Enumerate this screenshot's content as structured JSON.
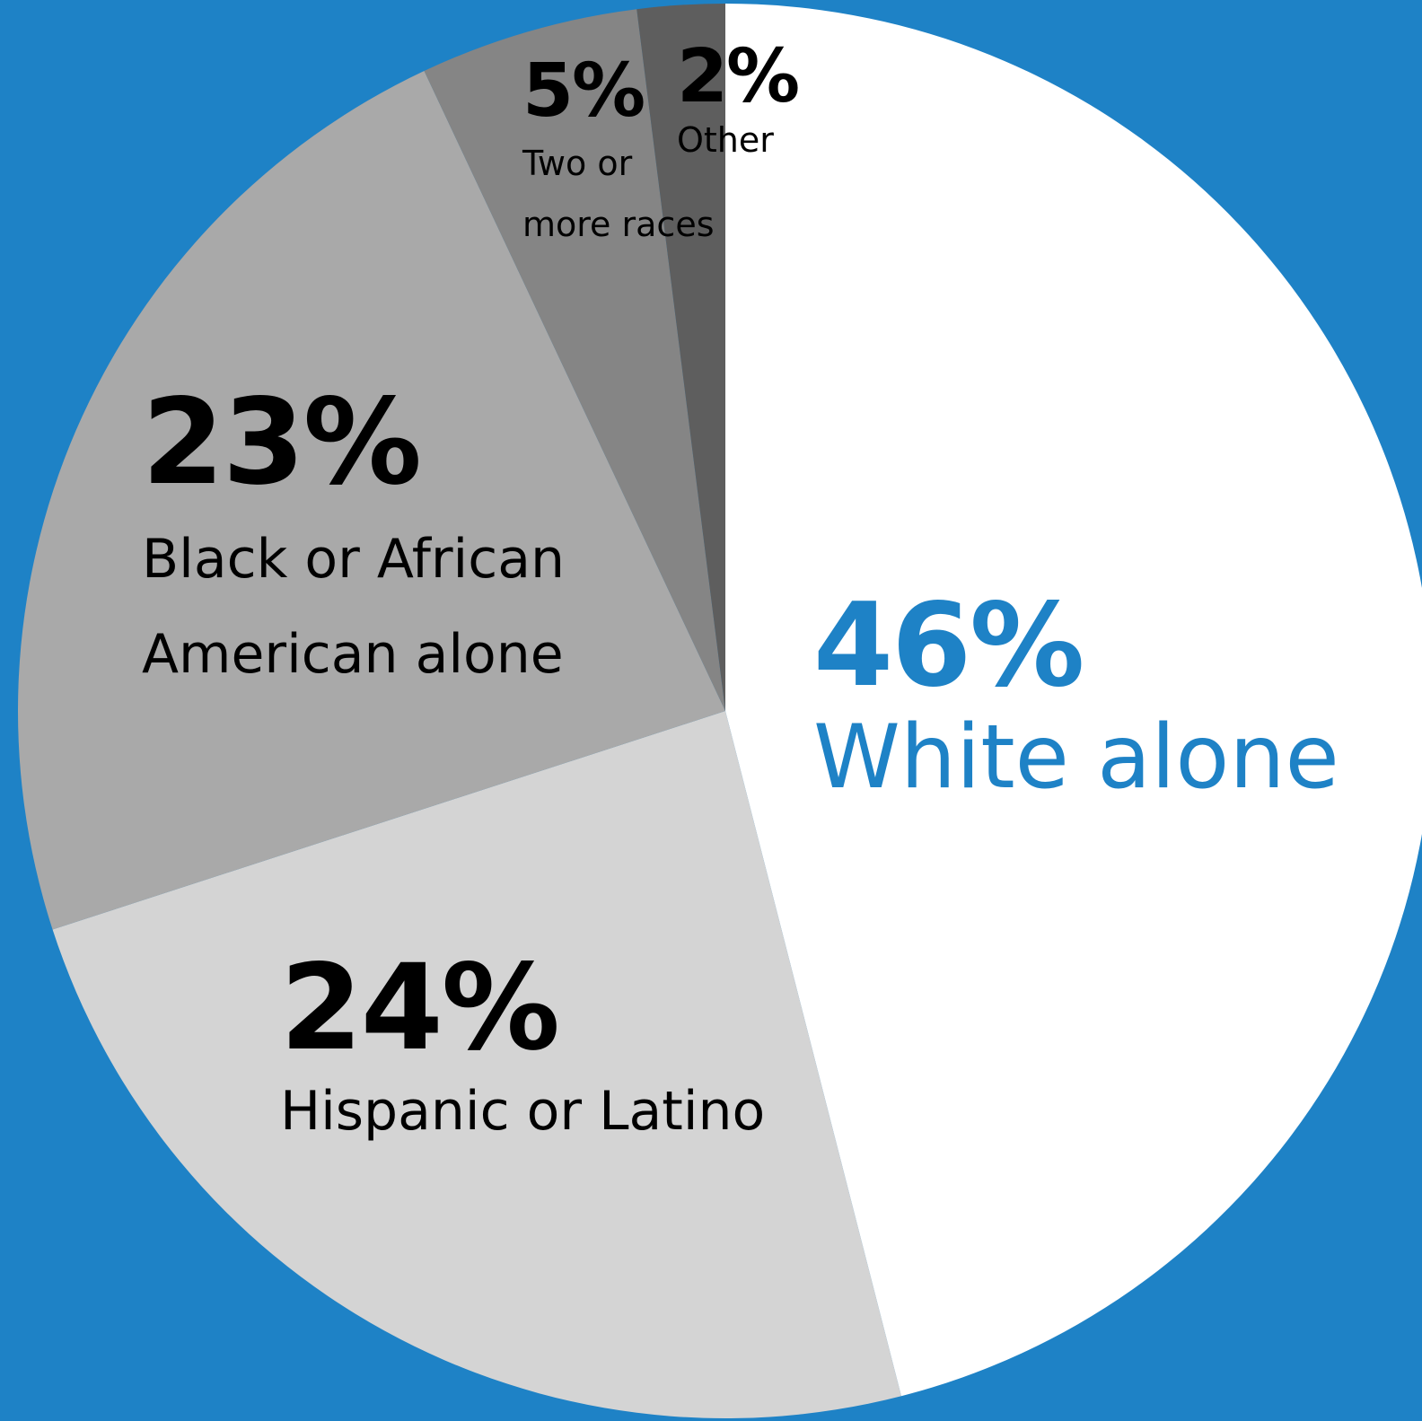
{
  "colors": {
    "background": "#1e82c6",
    "accent": "#1e82c6",
    "text": "#000000"
  },
  "chart_data": {
    "type": "pie",
    "start_angle": "12 o'clock",
    "direction": "clockwise",
    "slices": [
      {
        "key": "white",
        "percent_label": "46%",
        "name": "White alone",
        "value": 46,
        "color": "#ffffff"
      },
      {
        "key": "hispanic",
        "percent_label": "24%",
        "name": "Hispanic or Latino",
        "value": 24,
        "color": "#d4d4d4"
      },
      {
        "key": "black",
        "percent_label": "23%",
        "name": "Black or African American alone",
        "name_lines": [
          "Black or African",
          "American alone"
        ],
        "value": 23,
        "color": "#a9a9a9"
      },
      {
        "key": "multi",
        "percent_label": "5%",
        "name": "Two or more races",
        "name_lines": [
          "Two or",
          "more races"
        ],
        "value": 5,
        "color": "#858585"
      },
      {
        "key": "other",
        "percent_label": "2%",
        "name": "Other",
        "value": 2,
        "color": "#5e5e5e"
      }
    ]
  }
}
